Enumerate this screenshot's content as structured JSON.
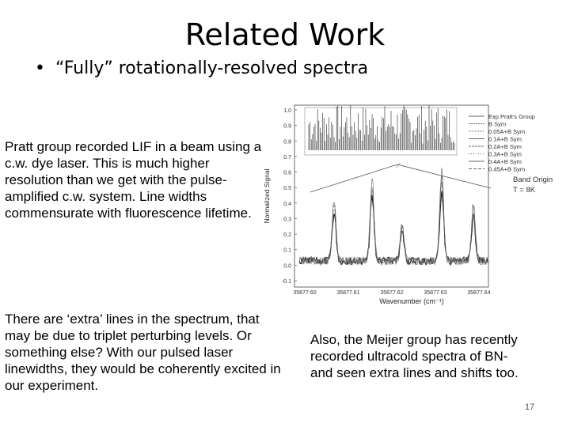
{
  "slide": {
    "title": "Related Work",
    "bullet_symbol": "•",
    "bullet_text": "“Fully” rotationally-resolved spectra",
    "paragraph_pratt": "Pratt group recorded LIF in a beam using a c.w. dye laser.  This is much higher  resolution than we get with the pulse-amplified c.w. system.  Line widths commensurate with fluorescence lifetime.",
    "paragraph_extra": "There are ‘extra’ lines in the spectrum, that may be due to triplet perturbing levels.  Or something else?  With our pulsed laser linewidths, they would be coherently excited in our experiment.",
    "paragraph_meijer": "Also, the Meijer group has recently recorded ultracold spectra of BN-and seen extra lines and shifts too.",
    "slide_number": "17"
  },
  "figure": {
    "ylabel": "Normalized Signal",
    "xlabel": "Wavenumber (cm⁻¹)",
    "y_ticks": [
      "1.0",
      "0.9",
      "0.8",
      "0.7",
      "0.6",
      "0.5",
      "0.4",
      "0.3",
      "0.2",
      "0.1",
      "0.0",
      "-0.1"
    ],
    "x_ticks": [
      "35877.60",
      "35877.61",
      "35877.62",
      "35877.63",
      "35877.64"
    ],
    "legend": [
      "Exp Pratt's Group",
      "B Sym",
      "0.05A+B Sym",
      "0.1A+B Sym",
      "0.2A+B Sym",
      "0.3A+B Sym",
      "0.4A+B Sym",
      "0.45A+B Sym"
    ],
    "annotation_line1": "Band Origin",
    "annotation_line2": "T = 8K"
  }
}
